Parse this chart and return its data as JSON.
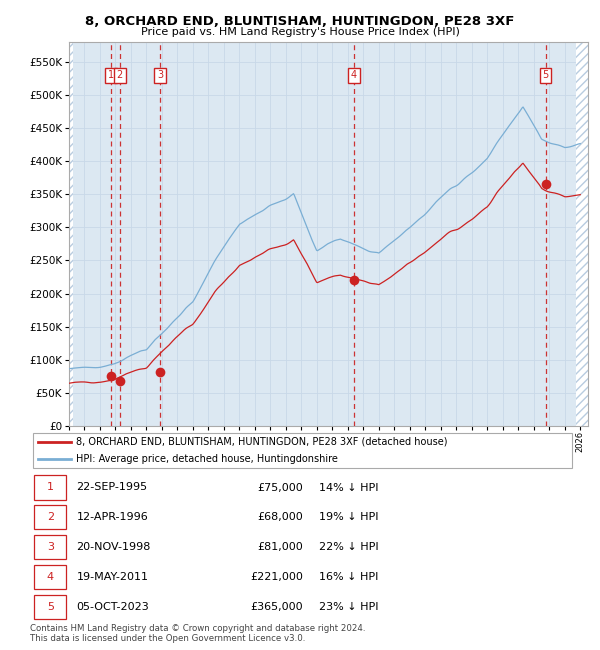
{
  "title": "8, ORCHARD END, BLUNTISHAM, HUNTINGDON, PE28 3XF",
  "subtitle": "Price paid vs. HM Land Registry's House Price Index (HPI)",
  "xmin": 1993.0,
  "xmax": 2026.5,
  "ymin": 0,
  "ymax": 580000,
  "yticks": [
    0,
    50000,
    100000,
    150000,
    200000,
    250000,
    300000,
    350000,
    400000,
    450000,
    500000,
    550000
  ],
  "ytick_labels": [
    "£0",
    "£50K",
    "£100K",
    "£150K",
    "£200K",
    "£250K",
    "£300K",
    "£350K",
    "£400K",
    "£450K",
    "£500K",
    "£550K"
  ],
  "sales": [
    {
      "num": 1,
      "date": "22-SEP-1995",
      "year": 1995.72,
      "price": 75000,
      "pct": "14%"
    },
    {
      "num": 2,
      "date": "12-APR-1996",
      "year": 1996.28,
      "price": 68000,
      "pct": "19%"
    },
    {
      "num": 3,
      "date": "20-NOV-1998",
      "year": 1998.89,
      "price": 81000,
      "pct": "22%"
    },
    {
      "num": 4,
      "date": "19-MAY-2011",
      "year": 2011.38,
      "price": 221000,
      "pct": "16%"
    },
    {
      "num": 5,
      "date": "05-OCT-2023",
      "year": 2023.76,
      "price": 365000,
      "pct": "23%"
    }
  ],
  "legend_property_label": "8, ORCHARD END, BLUNTISHAM, HUNTINGDON, PE28 3XF (detached house)",
  "legend_hpi_label": "HPI: Average price, detached house, Huntingdonshire",
  "footer_line1": "Contains HM Land Registry data © Crown copyright and database right 2024.",
  "footer_line2": "This data is licensed under the Open Government Licence v3.0.",
  "hpi_color": "#7aaed4",
  "property_color": "#cc2222",
  "sale_marker_color": "#cc2222",
  "dashed_line_color": "#cc3333",
  "grid_color": "#c8d8e8",
  "sale_box_color": "#cc2222",
  "bg_color": "#dce8f2",
  "hatch_color": "#b8cce0"
}
